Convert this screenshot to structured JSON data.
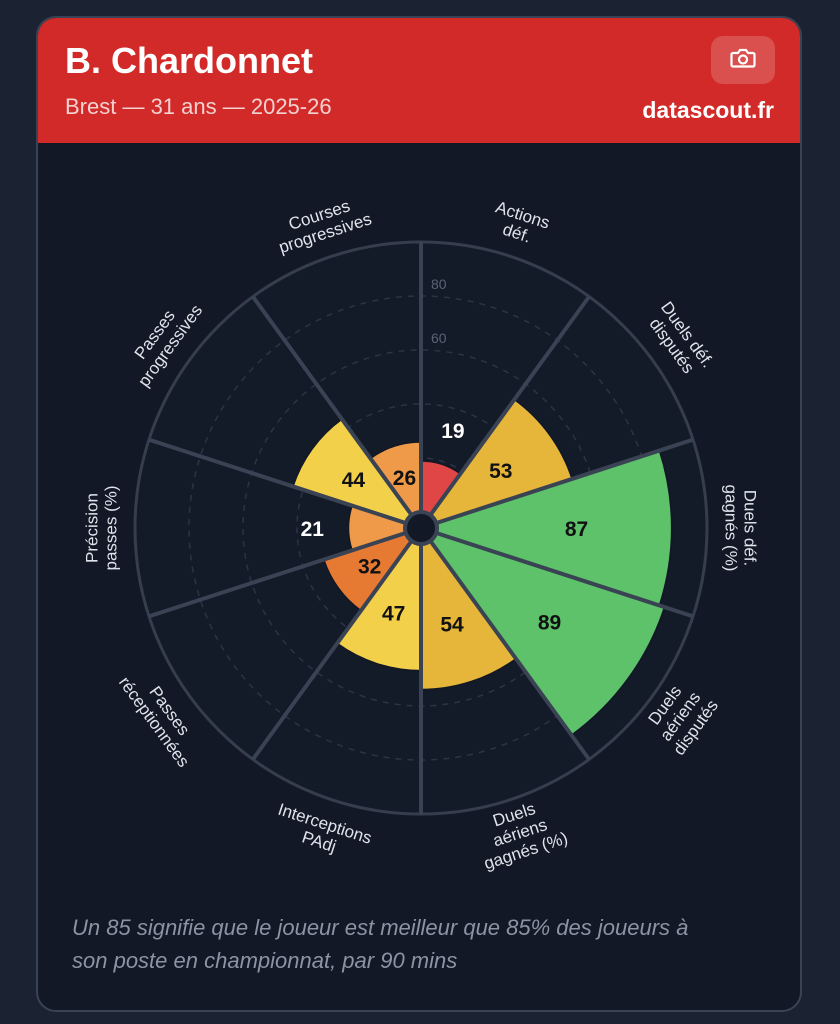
{
  "header": {
    "player_name": "B. Chardonnet",
    "subtitle": "Brest — 31 ans — 2025-26",
    "brand": "datascout.fr",
    "camera_icon": "camera-icon"
  },
  "chart_data": {
    "type": "polar-bar",
    "rlim": [
      0,
      100
    ],
    "rticks": [
      60,
      80
    ],
    "grid": true,
    "categories": [
      {
        "label": [
          "Actions",
          "déf."
        ],
        "value": 19,
        "color": "#e04646"
      },
      {
        "label": [
          "Duels déf.",
          "disputés"
        ],
        "value": 53,
        "color": "#e6b63a"
      },
      {
        "label": [
          "Duels déf.",
          "gagnés (%)"
        ],
        "value": 87,
        "color": "#5dc26a"
      },
      {
        "label": [
          "Duels",
          "aériens",
          "disputés"
        ],
        "value": 89,
        "color": "#5dc26a"
      },
      {
        "label": [
          "Duels",
          "aériens",
          "gagnés (%)"
        ],
        "value": 54,
        "color": "#e6b63a"
      },
      {
        "label": [
          "Interceptions",
          "PAdj"
        ],
        "value": 47,
        "color": "#f2d04a"
      },
      {
        "label": [
          "Passes",
          "réceptionnées"
        ],
        "value": 32,
        "color": "#e67a32"
      },
      {
        "label": [
          "Précision",
          "passes (%)"
        ],
        "value": 21,
        "color": "#ef9a48"
      },
      {
        "label": [
          "Passes",
          "progressives"
        ],
        "value": 44,
        "color": "#f2d04a"
      },
      {
        "label": [
          "Courses",
          "progressives"
        ],
        "value": 26,
        "color": "#ef9a48"
      }
    ]
  },
  "footnote": "Un 85 signifie que le joueur est meilleur que 85% des joueurs à son poste en championnat, par 90 mins"
}
